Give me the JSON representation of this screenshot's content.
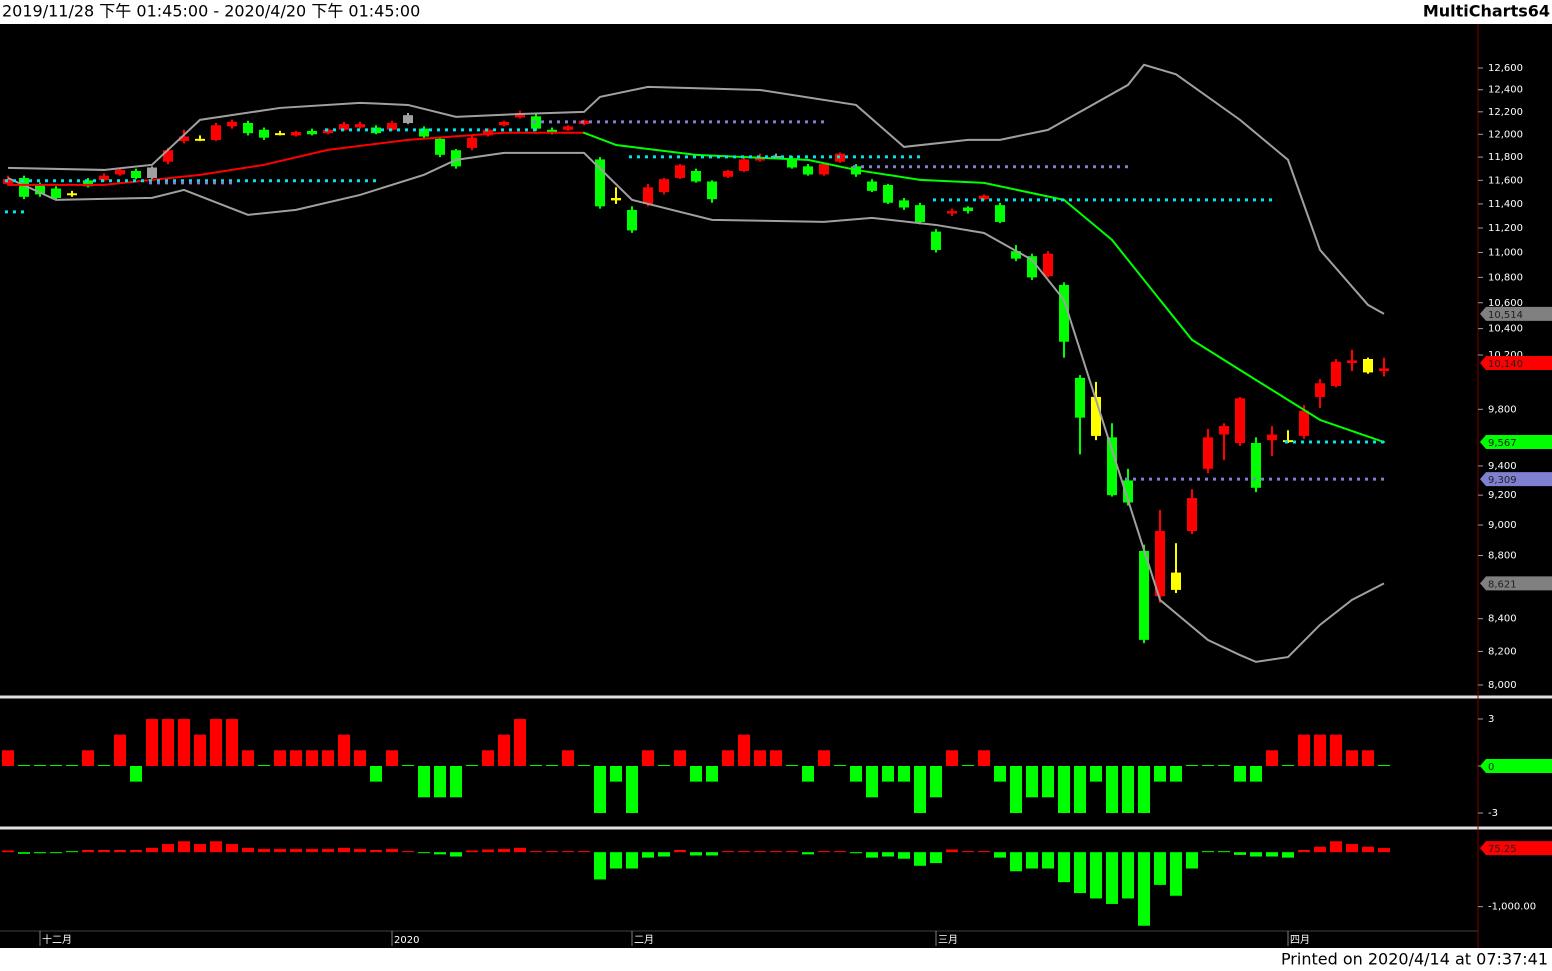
{
  "header": {
    "range": "2019/11/28 下午 01:45:00 - 2020/4/20 下午 01:45:00",
    "brand": "MultiCharts64"
  },
  "footer": "Printed on 2020/4/14 at 07:37:41",
  "chart_data": [
    {
      "type": "candlestick",
      "log_scale": true,
      "xlim": [
        -0.5,
        91.875
      ],
      "xticks": [
        {
          "value": 2,
          "label": "十二月"
        },
        {
          "value": 24,
          "label": "2020"
        },
        {
          "value": 39,
          "label": "二月"
        },
        {
          "value": 58,
          "label": "三月"
        },
        {
          "value": 80,
          "label": "四月"
        }
      ],
      "ylim": [
        7941,
        13015
      ],
      "yticks": [
        {
          "value": 12600,
          "label": "12,600"
        },
        {
          "value": 12400,
          "label": "12,400"
        },
        {
          "value": 12200,
          "label": "12,200"
        },
        {
          "value": 12000,
          "label": "12,000"
        },
        {
          "value": 11800,
          "label": "11,800"
        },
        {
          "value": 11600,
          "label": "11,600"
        },
        {
          "value": 11400,
          "label": "11,400"
        },
        {
          "value": 11200,
          "label": "11,200"
        },
        {
          "value": 11000,
          "label": "11,000"
        },
        {
          "value": 10800,
          "label": "10,800"
        },
        {
          "value": 10600,
          "label": "10,600"
        },
        {
          "value": 10400,
          "label": "10,400"
        },
        {
          "value": 10200,
          "label": "10,200"
        },
        {
          "value": 9800,
          "label": "9,800"
        },
        {
          "value": 9400,
          "label": "9,400"
        },
        {
          "value": 9200,
          "label": "9,200"
        },
        {
          "value": 9000,
          "label": "9,000"
        },
        {
          "value": 8800,
          "label": "8,800"
        },
        {
          "value": 8400,
          "label": "8,400"
        },
        {
          "value": 8200,
          "label": "8,200"
        },
        {
          "value": 8000,
          "label": "8,000"
        }
      ],
      "up_color": "#ff0000",
      "down_color": "#00ff00",
      "highlight_color": "#ffff00",
      "neutral_color": "#a0a0a0",
      "highlight": [
        4,
        12,
        17,
        38,
        68,
        73,
        80,
        85
      ],
      "neutral": [
        9,
        25,
        48
      ],
      "open": [
        11570,
        11620,
        11560,
        11530,
        11490,
        11600,
        11600,
        11650,
        11680,
        11620,
        11760,
        11940,
        11960,
        11950,
        12070,
        12100,
        12040,
        12010,
        11990,
        12030,
        12010,
        12040,
        12060,
        12060,
        12040,
        12170,
        12050,
        11960,
        11860,
        11880,
        11990,
        12080,
        12150,
        12160,
        12040,
        12040,
        12090,
        11780,
        11450,
        11350,
        11400,
        11500,
        11620,
        11680,
        11590,
        11630,
        11680,
        11770,
        11800,
        11790,
        11720,
        11650,
        11760,
        11720,
        11590,
        11560,
        11430,
        11390,
        11170,
        11320,
        11370,
        11440,
        11390,
        11010,
        10970,
        10810,
        10740,
        10030,
        9890,
        9600,
        9300,
        8830,
        8540,
        8690,
        8960,
        9380,
        9620,
        9560,
        9560,
        9580,
        9580,
        9610,
        9890,
        9970,
        10140,
        10170,
        10080
      ],
      "high": [
        11640,
        11640,
        11580,
        11550,
        11510,
        11620,
        11660,
        11700,
        11700,
        11720,
        11880,
        12040,
        11990,
        12100,
        12130,
        12120,
        12060,
        12030,
        12030,
        12050,
        12050,
        12110,
        12110,
        12080,
        12120,
        12190,
        12070,
        11980,
        11870,
        11990,
        12050,
        12120,
        12210,
        12180,
        12060,
        12080,
        12130,
        11800,
        11540,
        11380,
        11570,
        11620,
        11740,
        11700,
        11600,
        11690,
        11800,
        11830,
        11830,
        11810,
        11740,
        11750,
        11840,
        11740,
        11610,
        11570,
        11450,
        11410,
        11190,
        11360,
        11380,
        11480,
        11410,
        11060,
        10990,
        11010,
        10760,
        10050,
        10000,
        9700,
        9380,
        8870,
        9100,
        8880,
        9240,
        9660,
        9700,
        9890,
        9600,
        9680,
        9650,
        9830,
        10020,
        10170,
        10240,
        10180,
        10180
      ],
      "low": [
        11560,
        11440,
        11460,
        11440,
        11460,
        11540,
        11590,
        11640,
        11610,
        11610,
        11740,
        11920,
        11940,
        11940,
        12050,
        11990,
        11950,
        11990,
        11980,
        11990,
        12000,
        12030,
        12050,
        12000,
        12030,
        12090,
        11960,
        11800,
        11700,
        11860,
        11980,
        12070,
        12140,
        12030,
        12000,
        12030,
        12080,
        11360,
        11400,
        11160,
        11380,
        11480,
        11610,
        11580,
        11410,
        11620,
        11670,
        11760,
        11790,
        11700,
        11640,
        11640,
        11750,
        11630,
        11500,
        11400,
        11350,
        11230,
        11000,
        11300,
        11320,
        11430,
        11240,
        10930,
        10780,
        10800,
        10180,
        9480,
        9580,
        9190,
        9130,
        8250,
        8500,
        8560,
        8940,
        9350,
        9440,
        9540,
        9220,
        9470,
        9560,
        9590,
        9810,
        9960,
        10080,
        10060,
        10040
      ],
      "close": [
        11610,
        11460,
        11480,
        11450,
        11480,
        11550,
        11640,
        11690,
        11620,
        11710,
        11860,
        11980,
        11950,
        12080,
        12110,
        12010,
        11970,
        12000,
        12020,
        12000,
        12040,
        12090,
        12090,
        12010,
        12100,
        12100,
        11980,
        11820,
        11720,
        11970,
        12040,
        12110,
        12190,
        12050,
        12010,
        12070,
        12120,
        11380,
        11430,
        11180,
        11540,
        11610,
        11730,
        11590,
        11440,
        11680,
        11780,
        11800,
        11810,
        11710,
        11650,
        11740,
        11830,
        11650,
        11510,
        11410,
        11370,
        11250,
        11020,
        11340,
        11340,
        11470,
        11250,
        10950,
        10800,
        10990,
        10300,
        9740,
        9610,
        9200,
        9150,
        8270,
        8960,
        8580,
        9180,
        9600,
        9680,
        9880,
        9250,
        9620,
        9570,
        9790,
        9990,
        10150,
        10160,
        10070,
        10100
      ],
      "bands": {
        "upper": {
          "color": "#a0a0a0",
          "x": [
            0,
            6,
            9,
            12,
            17,
            22,
            25,
            28,
            32,
            36,
            37,
            40,
            47,
            53,
            56,
            60,
            62,
            65,
            70,
            71,
            73,
            77,
            80,
            82,
            85,
            86
          ],
          "values": [
            11707,
            11689,
            11733,
            12128,
            12235,
            12281,
            12262,
            12155,
            12181,
            12199,
            12335,
            12426,
            12398,
            12262,
            11889,
            11951,
            11951,
            12039,
            12444,
            12630,
            12542,
            12128,
            11776,
            11021,
            10583,
            10514
          ]
        },
        "lower": {
          "color": "#a0a0a0",
          "x": [
            0,
            3,
            9,
            11,
            15,
            18,
            22,
            26,
            28,
            31,
            36,
            39,
            44,
            51,
            54,
            58,
            61,
            64,
            66,
            68,
            70,
            72,
            75,
            77,
            78,
            80,
            82,
            84,
            86
          ],
          "values": [
            11620,
            11434,
            11451,
            11518,
            11309,
            11350,
            11476,
            11647,
            11776,
            11837,
            11837,
            11434,
            11267,
            11250,
            11284,
            11225,
            11159,
            10940,
            10622,
            9868,
            9167,
            8517,
            8269,
            8178,
            8137,
            8166,
            8362,
            8517,
            8621
          ]
        },
        "middle": {
          "up_color": "#ff0000",
          "down_color": "#00ff00",
          "x": [
            0,
            6,
            12,
            16,
            20,
            25,
            31,
            36,
            38,
            43,
            50,
            53,
            57,
            61,
            66,
            69,
            72,
            74,
            78,
            82,
            86
          ],
          "values": [
            11561,
            11561,
            11647,
            11733,
            11863,
            11951,
            12013,
            12013,
            11906,
            11819,
            11776,
            11689,
            11604,
            11578,
            11434,
            11102,
            10622,
            10314,
            10014,
            9724,
            9567
          ]
        }
      },
      "levels": [
        {
          "value": 11596,
          "from": 0,
          "to": 23,
          "color": "#00e5ee"
        },
        {
          "value": 11334,
          "from": 0,
          "to": 1,
          "color": "#00e5ee"
        },
        {
          "value": 11578,
          "from": 9,
          "to": 14,
          "color": "#8080d0"
        },
        {
          "value": 12039,
          "from": 20,
          "to": 33,
          "color": "#00e5ee"
        },
        {
          "value": 12110,
          "from": 33,
          "to": 51,
          "color": "#8080d0"
        },
        {
          "value": 11802,
          "from": 39,
          "to": 57,
          "color": "#00e5ee"
        },
        {
          "value": 11716,
          "from": 53,
          "to": 70,
          "color": "#8080d0"
        },
        {
          "value": 11434,
          "from": 58,
          "to": 79,
          "color": "#00e5ee"
        },
        {
          "value": 9309,
          "from": 70,
          "to": 86,
          "color": "#8080d0"
        },
        {
          "value": 9567,
          "from": 80,
          "to": 86,
          "color": "#00e5ee"
        }
      ],
      "markers": [
        {
          "value": 10514,
          "label": "10,514",
          "color": "#808080"
        },
        {
          "value": 10140,
          "label": "10,140",
          "color": "#ff0000"
        },
        {
          "value": 9567,
          "label": "9,567",
          "color": "#00ff00"
        },
        {
          "value": 9309,
          "label": "9,309",
          "color": "#8080d0"
        },
        {
          "value": 8621,
          "label": "8,621",
          "color": "#808080"
        }
      ]
    },
    {
      "type": "bar",
      "ylim": [
        -3.83,
        4.21
      ],
      "yticks": [
        3,
        0,
        -3
      ],
      "up_color": "#ff0000",
      "down_color": "#00ff00",
      "values": [
        1,
        0,
        0,
        0,
        0,
        1,
        0,
        2,
        -1,
        3,
        3,
        3,
        2,
        3,
        3,
        1,
        0,
        1,
        1,
        1,
        1,
        2,
        1,
        -1,
        1,
        0,
        -2,
        -2,
        -2,
        0,
        1,
        2,
        3,
        0,
        0,
        1,
        0,
        -3,
        -1,
        -3,
        1,
        0,
        1,
        -1,
        -1,
        1,
        2,
        1,
        1,
        0,
        -1,
        1,
        0,
        -1,
        -2,
        -1,
        -1,
        -3,
        -2,
        1,
        0,
        1,
        -1,
        -3,
        -2,
        -2,
        -3,
        -3,
        -1,
        -3,
        -3,
        -3,
        -1,
        -1,
        0,
        0,
        0,
        -1,
        -1,
        1,
        0,
        2,
        2,
        2,
        1,
        1,
        0
      ],
      "markers": [
        {
          "value": 0,
          "label": "0",
          "color": "#00ff00"
        }
      ]
    },
    {
      "type": "bar",
      "ylim": [
        -1722,
        407
      ],
      "yticks": [
        {
          "value": -1000,
          "label": "-1,000.00"
        }
      ],
      "up_color": "#ff0000",
      "down_color": "#00ff00",
      "values": [
        30,
        -30,
        -20,
        -10,
        0,
        40,
        40,
        40,
        40,
        80,
        150,
        200,
        150,
        200,
        150,
        80,
        60,
        60,
        60,
        60,
        60,
        80,
        60,
        40,
        60,
        20,
        -10,
        -40,
        -80,
        30,
        50,
        60,
        80,
        20,
        20,
        20,
        20,
        -500,
        -300,
        -300,
        -100,
        -80,
        40,
        -60,
        -60,
        20,
        20,
        20,
        20,
        20,
        -40,
        20,
        20,
        -20,
        -100,
        -80,
        -120,
        -250,
        -200,
        50,
        20,
        20,
        -100,
        -350,
        -300,
        -300,
        -550,
        -750,
        -850,
        -950,
        -850,
        -1350,
        -600,
        -800,
        -300,
        0,
        0,
        -50,
        -80,
        -80,
        -100,
        40,
        100,
        200,
        150,
        100,
        75.25
      ],
      "markers": [
        {
          "value": 75.25,
          "label": "75.25",
          "color": "#ff0000"
        }
      ]
    }
  ]
}
